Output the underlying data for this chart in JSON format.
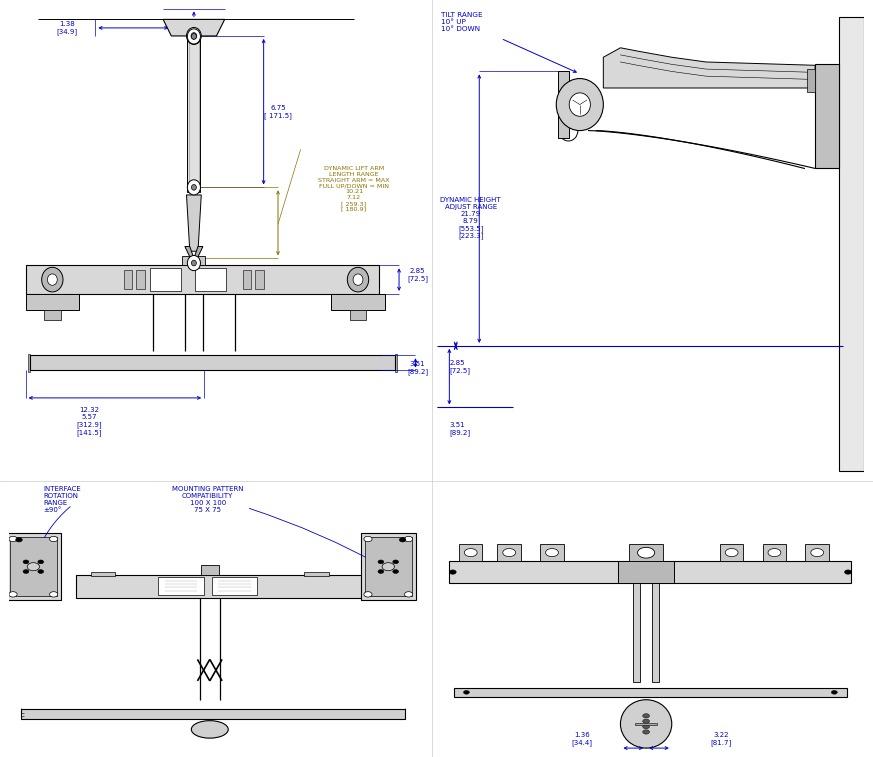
{
  "bg_color": "#ffffff",
  "line_color": "#000000",
  "dim_color": "#0000cc",
  "gold_color": "#8B7300",
  "annotations": {
    "tl_width": "1.38\n[34.9]",
    "tl_drop": "6.75\n[ 171.5]",
    "tl_lift_arm": "DYNAMIC LIFT ARM\nLENGTH RANGE\nSTRAIGHT ARM = MAX\nFULL UP/DOWN = MIN\n10.21\n7.12\n[ 259.3]\n[ 180.9]",
    "tl_rail_h": "2.85\n[72.5]",
    "tl_base_h": "3.51\n[89.2]",
    "tl_total_w": "12.32\n5.57\n[312.9]\n[141.5]",
    "tr_tilt": "TILT RANGE\n10° UP\n10° DOWN",
    "tr_height": "DYNAMIC HEIGHT\nADJUST RANGE\n21.79\n8.79\n[553.5]\n[223.3]",
    "tr_285": "2.85\n[72.5]",
    "tr_351": "3.51\n[89.2]",
    "bl_interface": "INTERFACE\nROTATION\nRANGE\n±90°",
    "bl_mounting": "MOUNTING PATTERN\nCOMPATIBILITY\n100 X 100\n75 X 75",
    "br_dim1": "1.36\n[34.4]",
    "br_dim2": "3.22\n[81.7]"
  }
}
